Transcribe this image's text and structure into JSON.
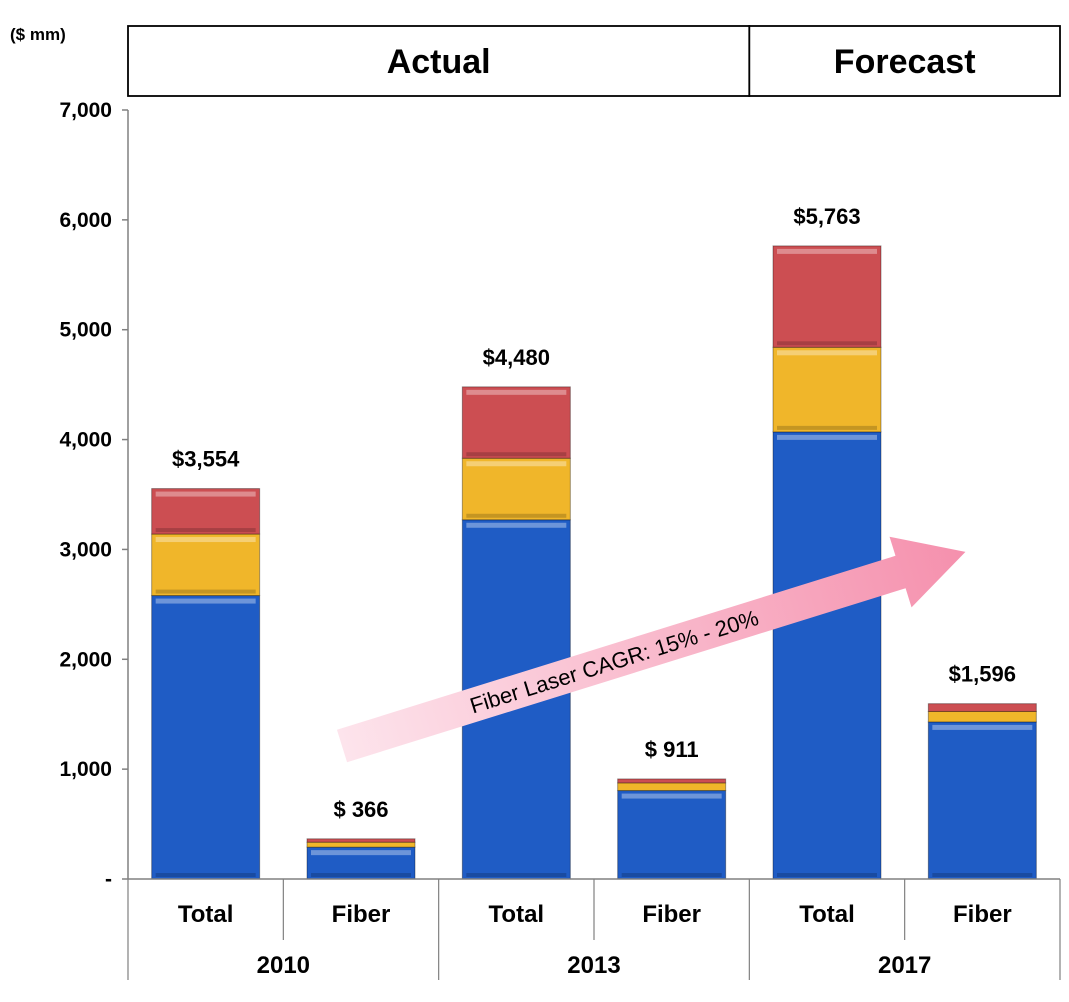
{
  "chart_data": {
    "type": "bar",
    "stacked": true,
    "unit_label": "($ mm)",
    "period_headers": [
      {
        "label": "Actual",
        "group_span": [
          0,
          1
        ]
      },
      {
        "label": "Forecast",
        "group_span": [
          2,
          2
        ]
      }
    ],
    "groups": [
      "2010",
      "2013",
      "2017"
    ],
    "categories": [
      "Total",
      "Fiber",
      "Total",
      "Fiber",
      "Total",
      "Fiber"
    ],
    "category_group_index": [
      0,
      0,
      1,
      1,
      2,
      2
    ],
    "totals": [
      3554,
      366,
      4480,
      911,
      5763,
      1596
    ],
    "total_labels": [
      "$3,554",
      "$ 366",
      "$4,480",
      "$ 911",
      "$5,763",
      "$1,596"
    ],
    "series": [
      {
        "values": [
          2580,
          290,
          3270,
          805,
          4070,
          1430
        ],
        "color": "#1f5cc5"
      },
      {
        "values": [
          560,
          45,
          560,
          70,
          770,
          95
        ],
        "color": "#f0b62a"
      },
      {
        "values": [
          414,
          31,
          650,
          36,
          923,
          71
        ],
        "color": "#cc4e52"
      }
    ],
    "ylim": [
      0,
      7000
    ],
    "yticks": [
      {
        "value": 0,
        "label": "-"
      },
      {
        "value": 1000,
        "label": "1,000"
      },
      {
        "value": 2000,
        "label": "2,000"
      },
      {
        "value": 3000,
        "label": "3,000"
      },
      {
        "value": 4000,
        "label": "4,000"
      },
      {
        "value": 5000,
        "label": "5,000"
      },
      {
        "value": 6000,
        "label": "6,000"
      },
      {
        "value": 7000,
        "label": "7,000"
      }
    ],
    "grid": false,
    "legend": "none",
    "annotation": {
      "text": "Fiber Laser CAGR: 15% - 20%",
      "color": "#f7a9be"
    }
  }
}
